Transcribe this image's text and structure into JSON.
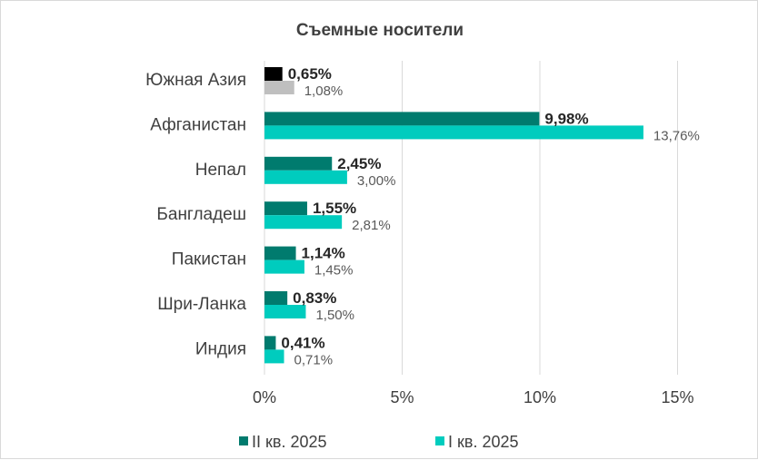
{
  "chart_data": {
    "type": "bar",
    "orientation": "horizontal",
    "title": "Съемные носители",
    "categories": [
      "Южная Азия",
      "Афганистан",
      "Непал",
      "Бангладеш",
      "Пакистан",
      "Шри-Ланка",
      "Индия"
    ],
    "series": [
      {
        "name": "II кв. 2025",
        "color": "#007b6e",
        "values": [
          0.65,
          9.98,
          2.45,
          1.55,
          1.14,
          0.83,
          0.41
        ],
        "labels": [
          "0,65%",
          "9,98%",
          "2,45%",
          "1,55%",
          "1,14%",
          "0,83%",
          "0,41%"
        ]
      },
      {
        "name": "I кв. 2025",
        "color": "#00ccbe",
        "values": [
          1.08,
          13.76,
          3.0,
          2.81,
          1.45,
          1.5,
          0.71
        ],
        "labels": [
          "1,08%",
          "13,76%",
          "3,00%",
          "2,81%",
          "1,45%",
          "1,50%",
          "0,71%"
        ]
      }
    ],
    "highlight": {
      "category": "Южная Азия",
      "colors": [
        "#000000",
        "#bfbfbf"
      ]
    },
    "xlim": [
      0,
      15
    ],
    "xticks": [
      0,
      5,
      10,
      15
    ],
    "xtick_labels": [
      "0%",
      "5%",
      "10%",
      "15%"
    ],
    "grid": "vertical",
    "legend_position": "bottom"
  }
}
